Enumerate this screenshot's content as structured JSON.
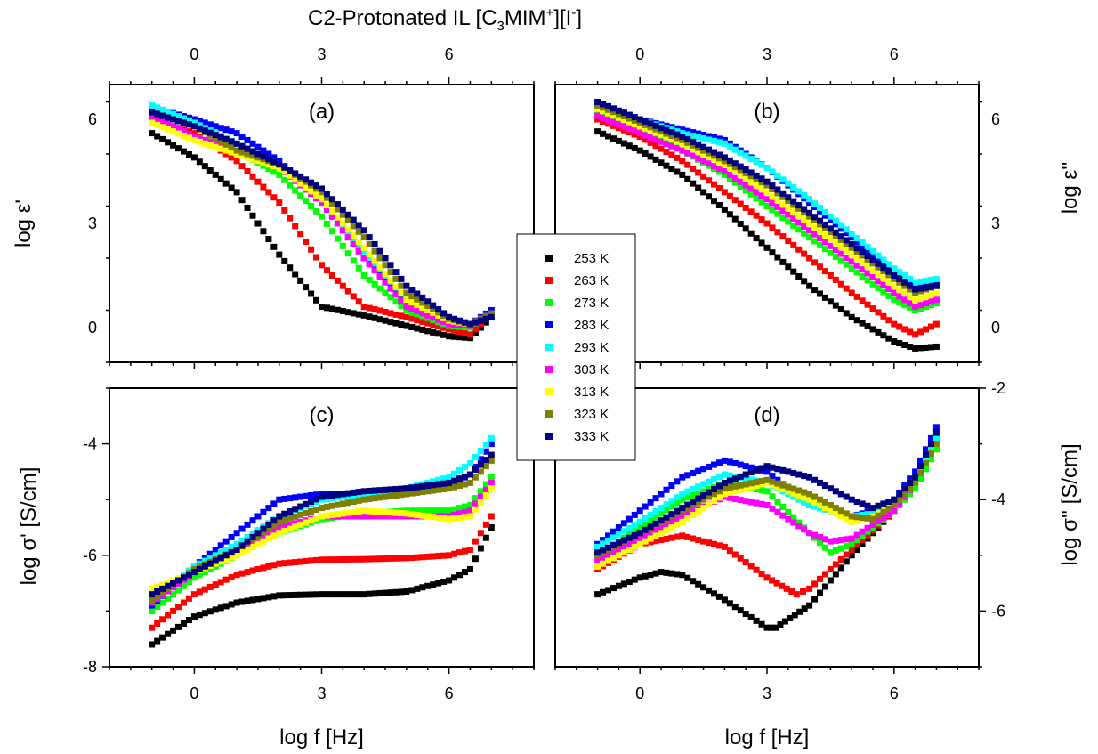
{
  "title_parts": {
    "main": "C2-Protonated IL [C",
    "sub": "3",
    "mid1": "MIM",
    "sup1": "+",
    "mid2": "][I",
    "sup2": "-",
    "end": "]"
  },
  "legend": {
    "entries": [
      {
        "label": "253 K",
        "color": "#000000",
        "marker": "square"
      },
      {
        "label": "263 K",
        "color": "#ff0000",
        "marker": "square"
      },
      {
        "label": "273 K",
        "color": "#00ff00",
        "marker": "square"
      },
      {
        "label": "283 K",
        "color": "#0000ff",
        "marker": "square"
      },
      {
        "label": "293 K",
        "color": "#00ffff",
        "marker": "square"
      },
      {
        "label": "303 K",
        "color": "#ff00ff",
        "marker": "square"
      },
      {
        "label": "313 K",
        "color": "#ffff00",
        "marker": "square"
      },
      {
        "label": "323 K",
        "color": "#808000",
        "marker": "square"
      },
      {
        "label": "333 K",
        "color": "#000080",
        "marker": "square"
      }
    ]
  },
  "chart_data": [
    {
      "panel": "(a)",
      "type": "scatter",
      "xlabel": "",
      "ylabel": "log ε'",
      "xlim": [
        -2,
        8
      ],
      "ylim": [
        -1,
        7
      ],
      "xticks": [
        0,
        3,
        6
      ],
      "yticks": [
        0,
        3,
        6
      ],
      "top_xticks": [
        0,
        3,
        6
      ],
      "series": [
        {
          "name": "253 K",
          "x": [
            -1,
            0,
            1,
            2,
            3,
            4,
            5,
            6,
            6.5,
            7
          ],
          "y": [
            5.6,
            4.9,
            3.9,
            2.1,
            0.6,
            0.35,
            0.05,
            -0.25,
            -0.3,
            0.3
          ]
        },
        {
          "name": "263 K",
          "x": [
            -1,
            0,
            1,
            2,
            3,
            4,
            5,
            6,
            6.5,
            7
          ],
          "y": [
            6.0,
            5.6,
            4.8,
            3.6,
            1.8,
            0.6,
            0.3,
            -0.05,
            -0.2,
            0.4
          ]
        },
        {
          "name": "273 K",
          "x": [
            -1,
            0,
            1,
            2,
            3,
            4,
            5,
            6,
            6.5,
            7
          ],
          "y": [
            6.1,
            5.5,
            5.1,
            4.4,
            3.2,
            1.5,
            0.5,
            0.05,
            0,
            0.5
          ]
        },
        {
          "name": "283 K",
          "x": [
            -1,
            0,
            1,
            2,
            3,
            4,
            5,
            6,
            6.5,
            7
          ],
          "y": [
            6.35,
            6.0,
            5.6,
            4.8,
            3.6,
            2.0,
            0.7,
            0.15,
            0.1,
            0.5
          ]
        },
        {
          "name": "293 K",
          "x": [
            -1,
            0,
            1,
            2,
            3,
            4,
            5,
            6,
            6.5,
            7
          ],
          "y": [
            6.4,
            5.9,
            5.3,
            4.7,
            3.6,
            2.2,
            0.8,
            0.2,
            0.1,
            0.4
          ]
        },
        {
          "name": "303 K",
          "x": [
            -1,
            0,
            1,
            2,
            3,
            4,
            5,
            6,
            6.5,
            7
          ],
          "y": [
            6.1,
            5.5,
            5.1,
            4.6,
            3.6,
            2.0,
            0.6,
            0.1,
            0.05,
            0.4
          ]
        },
        {
          "name": "313 K",
          "x": [
            -1,
            0,
            1,
            2,
            3,
            4,
            5,
            6,
            6.5,
            7
          ],
          "y": [
            5.9,
            5.4,
            5.0,
            4.6,
            3.7,
            2.3,
            0.8,
            0.2,
            0.1,
            0.4
          ]
        },
        {
          "name": "323 K",
          "x": [
            -1,
            0,
            1,
            2,
            3,
            4,
            5,
            6,
            6.5,
            7
          ],
          "y": [
            6.2,
            5.8,
            5.1,
            4.7,
            3.9,
            2.6,
            1.0,
            0.25,
            0.1,
            0.4
          ]
        },
        {
          "name": "333 K",
          "x": [
            -1,
            0,
            1,
            2,
            3,
            4,
            5,
            6,
            6.5,
            7
          ],
          "y": [
            6.2,
            5.8,
            5.3,
            4.7,
            4.0,
            2.8,
            1.2,
            0.3,
            0.1,
            0.3
          ]
        }
      ]
    },
    {
      "panel": "(b)",
      "type": "scatter",
      "xlabel": "",
      "ylabel": "log ε''",
      "xlim": [
        -2,
        8
      ],
      "ylim": [
        -1,
        7
      ],
      "xticks": [
        0,
        3,
        6
      ],
      "yticks": [
        0,
        3,
        6
      ],
      "top_xticks": [
        0,
        3,
        6
      ],
      "series": [
        {
          "name": "253 K",
          "x": [
            -1,
            0,
            1,
            2,
            3,
            4,
            5,
            6,
            6.5,
            7
          ],
          "y": [
            5.65,
            5.1,
            4.4,
            3.4,
            2.3,
            1.2,
            0.3,
            -0.4,
            -0.6,
            -0.55
          ]
        },
        {
          "name": "263 K",
          "x": [
            -1,
            0,
            1,
            2,
            3,
            4,
            5,
            6,
            6.5,
            7
          ],
          "y": [
            6.0,
            5.5,
            4.8,
            3.9,
            3.0,
            2.0,
            1.0,
            0.1,
            -0.2,
            0.1
          ]
        },
        {
          "name": "273 K",
          "x": [
            -1,
            0,
            1,
            2,
            3,
            4,
            5,
            6,
            6.5,
            7
          ],
          "y": [
            6.2,
            5.7,
            5.1,
            4.4,
            3.5,
            2.6,
            1.7,
            0.8,
            0.5,
            0.7
          ]
        },
        {
          "name": "283 K",
          "x": [
            -1,
            0,
            1,
            2,
            3,
            4,
            5,
            6,
            6.5,
            7
          ],
          "y": [
            6.45,
            6.0,
            5.7,
            5.4,
            4.6,
            3.6,
            2.6,
            1.6,
            1.2,
            1.3
          ]
        },
        {
          "name": "293 K",
          "x": [
            -1,
            0,
            1,
            2,
            3,
            4,
            5,
            6,
            6.5,
            7
          ],
          "y": [
            6.5,
            6.0,
            5.6,
            5.3,
            4.6,
            3.7,
            2.7,
            1.7,
            1.3,
            1.4
          ]
        },
        {
          "name": "303 K",
          "x": [
            -1,
            0,
            1,
            2,
            3,
            4,
            5,
            6,
            6.5,
            7
          ],
          "y": [
            6.1,
            5.6,
            5.1,
            4.5,
            3.7,
            2.8,
            1.9,
            1.0,
            0.6,
            0.8
          ]
        },
        {
          "name": "313 K",
          "x": [
            -1,
            0,
            1,
            2,
            3,
            4,
            5,
            6,
            6.5,
            7
          ],
          "y": [
            6.3,
            5.8,
            5.3,
            4.7,
            3.9,
            3.0,
            2.1,
            1.2,
            0.8,
            1.0
          ]
        },
        {
          "name": "323 K",
          "x": [
            -1,
            0,
            1,
            2,
            3,
            4,
            5,
            6,
            6.5,
            7
          ],
          "y": [
            6.4,
            5.9,
            5.4,
            4.8,
            4.1,
            3.2,
            2.3,
            1.4,
            1.0,
            1.2
          ]
        },
        {
          "name": "333 K",
          "x": [
            -1,
            0,
            1,
            2,
            3,
            4,
            5,
            6,
            6.5,
            7
          ],
          "y": [
            6.5,
            6.0,
            5.5,
            4.9,
            4.2,
            3.3,
            2.4,
            1.5,
            1.1,
            1.2
          ]
        }
      ]
    },
    {
      "panel": "(c)",
      "type": "scatter",
      "xlabel": "log f [Hz]",
      "ylabel": "log σ' [S/cm]",
      "xlim": [
        -2,
        8
      ],
      "ylim": [
        -8,
        -3
      ],
      "xticks": [
        0,
        3,
        6
      ],
      "yticks": [
        -8,
        -6,
        -4
      ],
      "series": [
        {
          "name": "253 K",
          "x": [
            -1,
            0,
            1,
            2,
            3,
            4,
            5,
            6,
            6.5,
            7
          ],
          "y": [
            -7.6,
            -7.1,
            -6.85,
            -6.72,
            -6.7,
            -6.7,
            -6.65,
            -6.45,
            -6.25,
            -5.5
          ]
        },
        {
          "name": "263 K",
          "x": [
            -1,
            0,
            1,
            2,
            3,
            4,
            5,
            6,
            6.5,
            7
          ],
          "y": [
            -7.3,
            -6.7,
            -6.35,
            -6.15,
            -6.08,
            -6.07,
            -6.05,
            -6.0,
            -5.9,
            -5.3
          ]
        },
        {
          "name": "273 K",
          "x": [
            -1,
            0,
            1,
            2,
            3,
            4,
            5,
            6,
            6.5,
            7
          ],
          "y": [
            -7.0,
            -6.4,
            -6.0,
            -5.6,
            -5.35,
            -5.25,
            -5.2,
            -5.2,
            -5.1,
            -4.6
          ]
        },
        {
          "name": "283 K",
          "x": [
            -1,
            0,
            1,
            2,
            3,
            4,
            5,
            6,
            6.5,
            7
          ],
          "y": [
            -6.9,
            -6.2,
            -5.6,
            -5.0,
            -4.9,
            -4.9,
            -4.9,
            -4.75,
            -4.55,
            -4.0
          ]
        },
        {
          "name": "293 K",
          "x": [
            -1,
            0,
            1,
            2,
            3,
            4,
            5,
            6,
            6.5,
            7
          ],
          "y": [
            -6.8,
            -6.2,
            -5.8,
            -5.3,
            -5.0,
            -4.9,
            -4.8,
            -4.6,
            -4.35,
            -3.9
          ]
        },
        {
          "name": "303 K",
          "x": [
            -1,
            0,
            1,
            2,
            3,
            4,
            5,
            6,
            6.5,
            7
          ],
          "y": [
            -6.85,
            -6.3,
            -5.9,
            -5.5,
            -5.3,
            -5.3,
            -5.3,
            -5.3,
            -5.2,
            -4.7
          ]
        },
        {
          "name": "313 K",
          "x": [
            -1,
            0,
            1,
            2,
            3,
            4,
            5,
            6,
            6.5,
            7
          ],
          "y": [
            -6.6,
            -6.3,
            -6.0,
            -5.6,
            -5.3,
            -5.2,
            -5.25,
            -5.35,
            -5.3,
            -4.8
          ]
        },
        {
          "name": "323 K",
          "x": [
            -1,
            0,
            1,
            2,
            3,
            4,
            5,
            6,
            6.5,
            7
          ],
          "y": [
            -6.8,
            -6.25,
            -5.9,
            -5.4,
            -5.15,
            -5.0,
            -4.9,
            -4.8,
            -4.7,
            -4.3
          ]
        },
        {
          "name": "333 K",
          "x": [
            -1,
            0,
            1,
            2,
            3,
            4,
            5,
            6,
            6.5,
            7
          ],
          "y": [
            -6.7,
            -6.3,
            -5.9,
            -5.3,
            -4.95,
            -4.85,
            -4.8,
            -4.7,
            -4.55,
            -4.2
          ]
        }
      ]
    },
    {
      "panel": "(d)",
      "type": "scatter",
      "xlabel": "log f [Hz]",
      "ylabel": "log σ'' [S/cm]",
      "xlim": [
        -2,
        8
      ],
      "ylim": [
        -7,
        -2
      ],
      "xticks": [
        0,
        3,
        6
      ],
      "yticks": [
        -6,
        -4,
        -2
      ],
      "series": [
        {
          "name": "253 K",
          "x": [
            -1,
            0,
            0.5,
            1,
            2,
            3,
            3.2,
            4,
            5,
            6,
            6.5,
            7
          ],
          "y": [
            -5.7,
            -5.4,
            -5.3,
            -5.35,
            -5.8,
            -6.3,
            -6.3,
            -5.9,
            -5.0,
            -4.2,
            -3.7,
            -3.0
          ]
        },
        {
          "name": "263 K",
          "x": [
            -1,
            0,
            1,
            2,
            3,
            3.7,
            4,
            5,
            6,
            6.5,
            7
          ],
          "y": [
            -5.25,
            -4.8,
            -4.65,
            -4.85,
            -5.4,
            -5.7,
            -5.6,
            -4.9,
            -4.2,
            -3.7,
            -2.9
          ]
        },
        {
          "name": "273 K",
          "x": [
            -1,
            0,
            1,
            2,
            3,
            4,
            4.5,
            5,
            6,
            6.5,
            7
          ],
          "y": [
            -5.0,
            -4.5,
            -4.0,
            -3.7,
            -3.85,
            -4.6,
            -4.95,
            -4.8,
            -4.2,
            -3.8,
            -3.1
          ]
        },
        {
          "name": "283 K",
          "x": [
            -1,
            0,
            1,
            2,
            3,
            4,
            5,
            5.5,
            6,
            6.5,
            7
          ],
          "y": [
            -4.8,
            -4.2,
            -3.6,
            -3.3,
            -3.5,
            -4.1,
            -4.3,
            -4.2,
            -4.0,
            -3.5,
            -2.7
          ]
        },
        {
          "name": "293 K",
          "x": [
            -1,
            0,
            1,
            2,
            3,
            4,
            5,
            5.5,
            6,
            6.5,
            7
          ],
          "y": [
            -4.85,
            -4.4,
            -3.9,
            -3.55,
            -3.7,
            -4.1,
            -4.3,
            -4.25,
            -4.0,
            -3.6,
            -2.9
          ]
        },
        {
          "name": "303 K",
          "x": [
            -1,
            0,
            1,
            2,
            3,
            4,
            4.5,
            5,
            6,
            6.5,
            7
          ],
          "y": [
            -5.1,
            -4.7,
            -4.3,
            -3.95,
            -4.1,
            -4.6,
            -4.75,
            -4.7,
            -4.2,
            -3.7,
            -3.0
          ]
        },
        {
          "name": "313 K",
          "x": [
            -1,
            0,
            1,
            2,
            3,
            4,
            5,
            5.5,
            6,
            6.5,
            7
          ],
          "y": [
            -5.2,
            -4.8,
            -4.4,
            -3.9,
            -3.7,
            -4.0,
            -4.4,
            -4.3,
            -4.1,
            -3.7,
            -3.0
          ]
        },
        {
          "name": "323 K",
          "x": [
            -1,
            0,
            1,
            2,
            3,
            4,
            5,
            5.5,
            6,
            6.5,
            7
          ],
          "y": [
            -5.0,
            -4.6,
            -4.2,
            -3.8,
            -3.65,
            -3.9,
            -4.3,
            -4.35,
            -4.1,
            -3.7,
            -3.0
          ]
        },
        {
          "name": "333 K",
          "x": [
            -1,
            0,
            1,
            2,
            3,
            4,
            5,
            5.5,
            6,
            6.5,
            7
          ],
          "y": [
            -4.95,
            -4.6,
            -4.15,
            -3.7,
            -3.4,
            -3.6,
            -4.0,
            -4.15,
            -4.0,
            -3.6,
            -2.8
          ]
        }
      ]
    }
  ]
}
